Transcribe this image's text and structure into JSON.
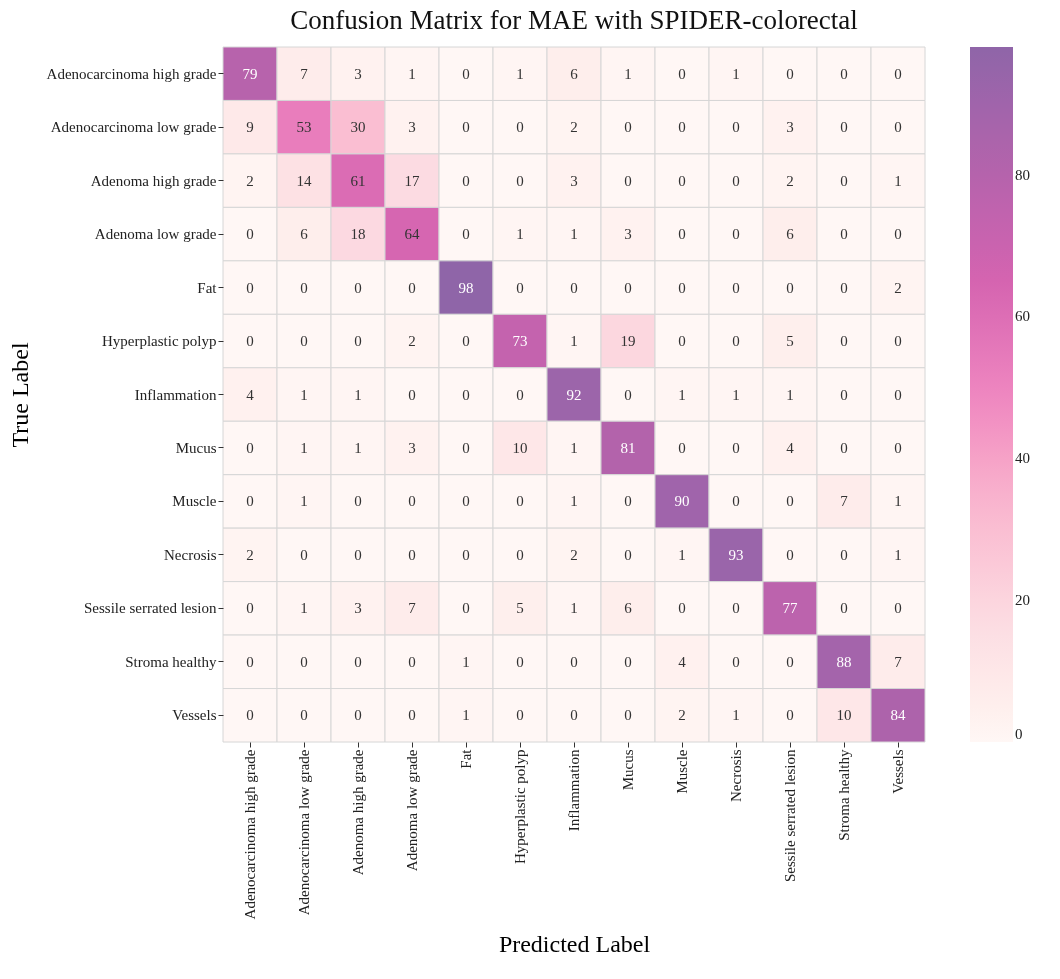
{
  "chart_data": {
    "type": "heatmap",
    "title": "Confusion Matrix for MAE with SPIDER-colorectal",
    "xlabel": "Predicted Label",
    "ylabel": "True Label",
    "categories": [
      "Adenocarcinoma high grade",
      "Adenocarcinoma low grade",
      "Adenoma high grade",
      "Adenoma low grade",
      "Fat",
      "Hyperplastic polyp",
      "Inflammation",
      "Mucus",
      "Muscle",
      "Necrosis",
      "Sessile serrated lesion",
      "Stroma healthy",
      "Vessels"
    ],
    "y_categories": [
      "Adenocarcinoma high grade",
      "Adenocarcinoma low grade",
      "Adenoma high grade",
      "Adenoma low grade",
      "Fat",
      "Hyperplastic polyp",
      "Inflammation",
      "Mucus",
      "Muscle",
      "Necrosis",
      "Sessile serrated lesion",
      "Stroma healthy",
      "Vessels"
    ],
    "cells": [
      [
        79,
        7,
        3,
        1,
        0,
        1,
        6,
        1,
        0,
        1,
        0,
        0,
        0
      ],
      [
        9,
        53,
        30,
        3,
        0,
        0,
        2,
        0,
        0,
        0,
        3,
        0,
        0
      ],
      [
        2,
        14,
        61,
        17,
        0,
        0,
        3,
        0,
        0,
        0,
        2,
        0,
        1
      ],
      [
        0,
        6,
        18,
        64,
        0,
        1,
        1,
        3,
        0,
        0,
        6,
        0,
        0
      ],
      [
        0,
        0,
        0,
        0,
        98,
        0,
        0,
        0,
        0,
        0,
        0,
        0,
        2
      ],
      [
        0,
        0,
        0,
        2,
        0,
        73,
        1,
        19,
        0,
        0,
        5,
        0,
        0
      ],
      [
        4,
        1,
        1,
        0,
        0,
        0,
        92,
        0,
        1,
        1,
        1,
        0,
        0
      ],
      [
        0,
        1,
        1,
        3,
        0,
        10,
        1,
        81,
        0,
        0,
        4,
        0,
        0
      ],
      [
        0,
        1,
        0,
        0,
        0,
        0,
        1,
        0,
        90,
        0,
        0,
        7,
        1
      ],
      [
        2,
        0,
        0,
        0,
        0,
        0,
        2,
        0,
        1,
        93,
        0,
        0,
        1
      ],
      [
        0,
        1,
        3,
        7,
        0,
        5,
        1,
        6,
        0,
        0,
        77,
        0,
        0
      ],
      [
        0,
        0,
        0,
        0,
        1,
        0,
        0,
        0,
        4,
        0,
        0,
        88,
        7
      ],
      [
        0,
        0,
        0,
        0,
        1,
        0,
        0,
        0,
        2,
        1,
        0,
        10,
        84
      ]
    ],
    "clim": [
      0,
      98
    ],
    "cticks": [
      0,
      20,
      40,
      60,
      80
    ],
    "data_labels": true
  }
}
